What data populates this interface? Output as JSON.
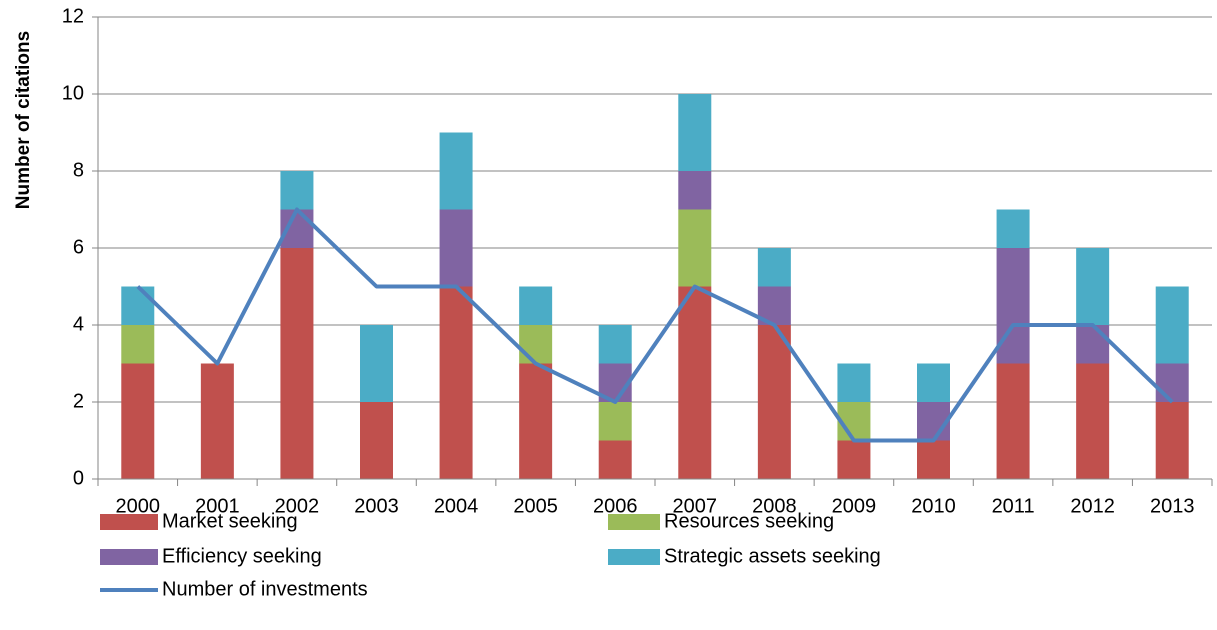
{
  "chart_data": {
    "type": "bar",
    "stacked": true,
    "y_label": "Number of citations",
    "categories": [
      "2000",
      "2001",
      "2002",
      "2003",
      "2004",
      "2005",
      "2006",
      "2007",
      "2008",
      "2009",
      "2010",
      "2011",
      "2012",
      "2013"
    ],
    "series": [
      {
        "name": "Market seeking",
        "color": "#c0504d",
        "values": [
          3,
          3,
          6,
          2,
          5,
          3,
          1,
          5,
          4,
          1,
          1,
          3,
          3,
          2
        ]
      },
      {
        "name": "Resources seeking",
        "color": "#9bbb59",
        "values": [
          1,
          0,
          0,
          0,
          0,
          1,
          1,
          2,
          0,
          1,
          0,
          0,
          0,
          0
        ]
      },
      {
        "name": "Efficiency seeking",
        "color": "#8064a2",
        "values": [
          0,
          0,
          1,
          0,
          2,
          0,
          1,
          1,
          1,
          0,
          1,
          3,
          1,
          1
        ]
      },
      {
        "name": "Strategic assets seeking",
        "color": "#4bacc6",
        "values": [
          1,
          0,
          1,
          2,
          2,
          1,
          1,
          2,
          1,
          1,
          1,
          1,
          2,
          2
        ]
      },
      {
        "name": "Number of investments",
        "color": "#4f81bd",
        "type": "line",
        "values": [
          5,
          3,
          7,
          5,
          5,
          3,
          2,
          5,
          4,
          1,
          1,
          4,
          4,
          2
        ]
      }
    ],
    "ylim": [
      0,
      12
    ],
    "yticks": [
      0,
      2,
      4,
      6,
      8,
      10,
      12
    ],
    "grid": true
  }
}
